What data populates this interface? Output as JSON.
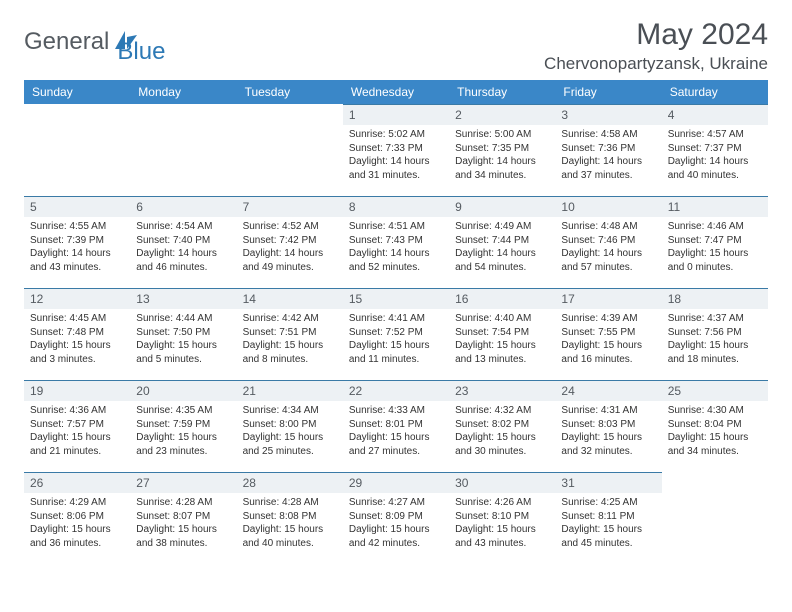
{
  "logo": {
    "text1": "General",
    "text2": "Blue",
    "color1": "#5a5f65",
    "color2": "#2d79b5"
  },
  "title": "May 2024",
  "location": "Chervonopartyzansk, Ukraine",
  "header_bg": "#3a87c8",
  "row_border": "#3a7aa6",
  "daynum_bg": "#edf1f4",
  "weekdays": [
    "Sunday",
    "Monday",
    "Tuesday",
    "Wednesday",
    "Thursday",
    "Friday",
    "Saturday"
  ],
  "weeks": [
    [
      null,
      null,
      null,
      {
        "n": "1",
        "sr": "5:02 AM",
        "ss": "7:33 PM",
        "dl": "14 hours and 31 minutes."
      },
      {
        "n": "2",
        "sr": "5:00 AM",
        "ss": "7:35 PM",
        "dl": "14 hours and 34 minutes."
      },
      {
        "n": "3",
        "sr": "4:58 AM",
        "ss": "7:36 PM",
        "dl": "14 hours and 37 minutes."
      },
      {
        "n": "4",
        "sr": "4:57 AM",
        "ss": "7:37 PM",
        "dl": "14 hours and 40 minutes."
      }
    ],
    [
      {
        "n": "5",
        "sr": "4:55 AM",
        "ss": "7:39 PM",
        "dl": "14 hours and 43 minutes."
      },
      {
        "n": "6",
        "sr": "4:54 AM",
        "ss": "7:40 PM",
        "dl": "14 hours and 46 minutes."
      },
      {
        "n": "7",
        "sr": "4:52 AM",
        "ss": "7:42 PM",
        "dl": "14 hours and 49 minutes."
      },
      {
        "n": "8",
        "sr": "4:51 AM",
        "ss": "7:43 PM",
        "dl": "14 hours and 52 minutes."
      },
      {
        "n": "9",
        "sr": "4:49 AM",
        "ss": "7:44 PM",
        "dl": "14 hours and 54 minutes."
      },
      {
        "n": "10",
        "sr": "4:48 AM",
        "ss": "7:46 PM",
        "dl": "14 hours and 57 minutes."
      },
      {
        "n": "11",
        "sr": "4:46 AM",
        "ss": "7:47 PM",
        "dl": "15 hours and 0 minutes."
      }
    ],
    [
      {
        "n": "12",
        "sr": "4:45 AM",
        "ss": "7:48 PM",
        "dl": "15 hours and 3 minutes."
      },
      {
        "n": "13",
        "sr": "4:44 AM",
        "ss": "7:50 PM",
        "dl": "15 hours and 5 minutes."
      },
      {
        "n": "14",
        "sr": "4:42 AM",
        "ss": "7:51 PM",
        "dl": "15 hours and 8 minutes."
      },
      {
        "n": "15",
        "sr": "4:41 AM",
        "ss": "7:52 PM",
        "dl": "15 hours and 11 minutes."
      },
      {
        "n": "16",
        "sr": "4:40 AM",
        "ss": "7:54 PM",
        "dl": "15 hours and 13 minutes."
      },
      {
        "n": "17",
        "sr": "4:39 AM",
        "ss": "7:55 PM",
        "dl": "15 hours and 16 minutes."
      },
      {
        "n": "18",
        "sr": "4:37 AM",
        "ss": "7:56 PM",
        "dl": "15 hours and 18 minutes."
      }
    ],
    [
      {
        "n": "19",
        "sr": "4:36 AM",
        "ss": "7:57 PM",
        "dl": "15 hours and 21 minutes."
      },
      {
        "n": "20",
        "sr": "4:35 AM",
        "ss": "7:59 PM",
        "dl": "15 hours and 23 minutes."
      },
      {
        "n": "21",
        "sr": "4:34 AM",
        "ss": "8:00 PM",
        "dl": "15 hours and 25 minutes."
      },
      {
        "n": "22",
        "sr": "4:33 AM",
        "ss": "8:01 PM",
        "dl": "15 hours and 27 minutes."
      },
      {
        "n": "23",
        "sr": "4:32 AM",
        "ss": "8:02 PM",
        "dl": "15 hours and 30 minutes."
      },
      {
        "n": "24",
        "sr": "4:31 AM",
        "ss": "8:03 PM",
        "dl": "15 hours and 32 minutes."
      },
      {
        "n": "25",
        "sr": "4:30 AM",
        "ss": "8:04 PM",
        "dl": "15 hours and 34 minutes."
      }
    ],
    [
      {
        "n": "26",
        "sr": "4:29 AM",
        "ss": "8:06 PM",
        "dl": "15 hours and 36 minutes."
      },
      {
        "n": "27",
        "sr": "4:28 AM",
        "ss": "8:07 PM",
        "dl": "15 hours and 38 minutes."
      },
      {
        "n": "28",
        "sr": "4:28 AM",
        "ss": "8:08 PM",
        "dl": "15 hours and 40 minutes."
      },
      {
        "n": "29",
        "sr": "4:27 AM",
        "ss": "8:09 PM",
        "dl": "15 hours and 42 minutes."
      },
      {
        "n": "30",
        "sr": "4:26 AM",
        "ss": "8:10 PM",
        "dl": "15 hours and 43 minutes."
      },
      {
        "n": "31",
        "sr": "4:25 AM",
        "ss": "8:11 PM",
        "dl": "15 hours and 45 minutes."
      },
      null
    ]
  ],
  "labels": {
    "sunrise": "Sunrise:",
    "sunset": "Sunset:",
    "daylight": "Daylight:"
  }
}
